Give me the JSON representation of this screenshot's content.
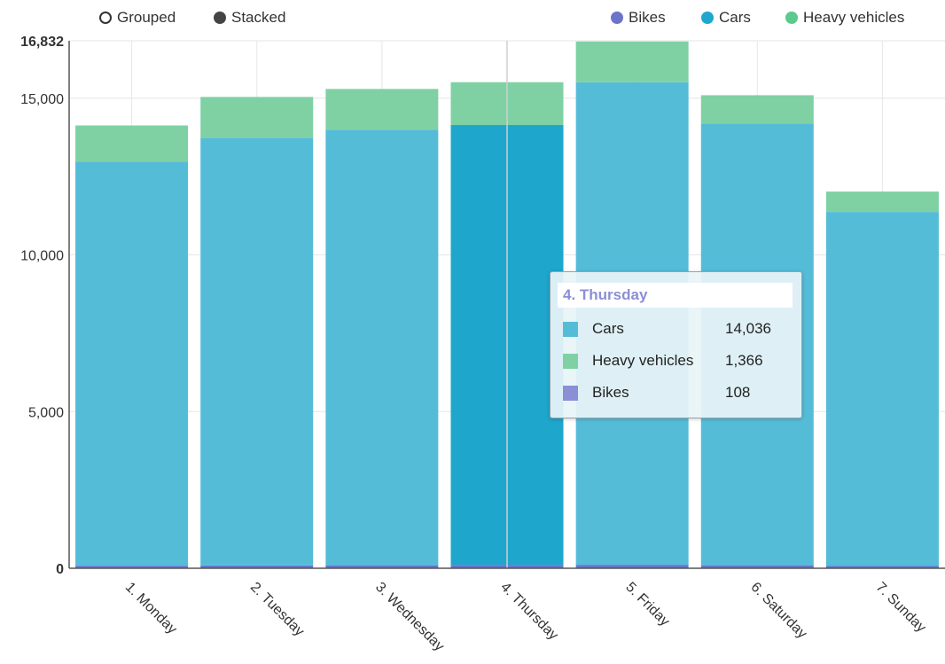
{
  "controls": {
    "grouped_label": "Grouped",
    "stacked_label": "Stacked",
    "selected": "stacked"
  },
  "legend": [
    {
      "name": "Bikes",
      "color": "#6a74c9"
    },
    {
      "name": "Cars",
      "color": "#1fa6cc"
    },
    {
      "name": "Heavy vehicles",
      "color": "#5cc98d"
    }
  ],
  "chart_data": {
    "type": "bar",
    "stacked": true,
    "categories": [
      "1. Monday",
      "2. Tuesday",
      "3. Wednesday",
      "4. Thursday",
      "5. Friday",
      "6. Saturday",
      "7. Sunday"
    ],
    "series": [
      {
        "name": "Bikes",
        "color": "#6a74c9",
        "values": [
          80,
          90,
          95,
          108,
          110,
          95,
          70
        ]
      },
      {
        "name": "Cars",
        "color": "#55bcd8",
        "values": [
          12900,
          13650,
          13900,
          14036,
          15400,
          14100,
          11300
        ]
      },
      {
        "name": "Heavy vehicles",
        "color": "#7fd1a4",
        "values": [
          1150,
          1300,
          1300,
          1366,
          1300,
          900,
          650
        ]
      }
    ],
    "ylim": [
      0,
      16832
    ],
    "yticks": [
      "0",
      "5,000",
      "10,000",
      "15,000",
      "16,832"
    ],
    "ytick_values": [
      0,
      5000,
      10000,
      15000,
      16832
    ],
    "highlight_index": 3,
    "highlight_color": "#1fa6cc",
    "grid": true
  },
  "tooltip": {
    "title": "4. Thursday",
    "rows": [
      {
        "name": "Cars",
        "value": "14,036",
        "color": "#55bcd8"
      },
      {
        "name": "Heavy vehicles",
        "value": "1,366",
        "color": "#7fd1a4"
      },
      {
        "name": "Bikes",
        "value": "108",
        "color": "#8a8fd6"
      }
    ]
  }
}
